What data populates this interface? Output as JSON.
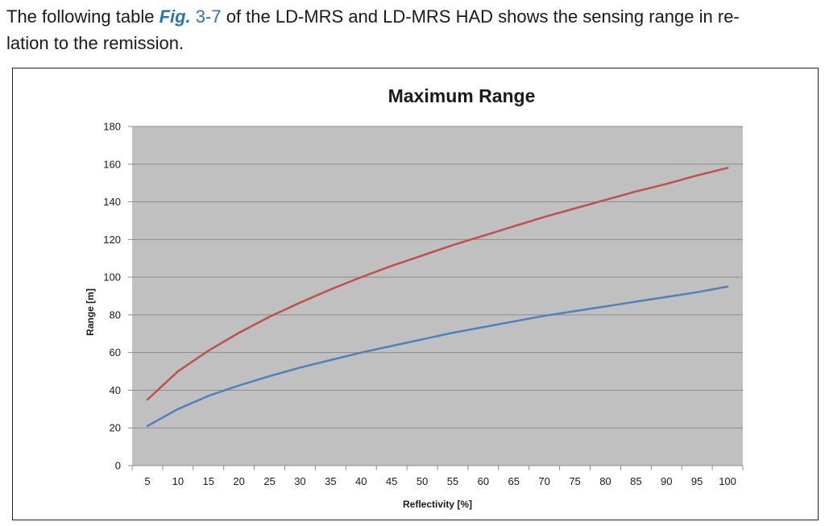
{
  "intro": {
    "text_before": "The following table ",
    "figure_ref_main": "Fig.",
    "figure_ref_num": " 3-7",
    "text_after_line1": " of the LD-MRS and LD-MRS HAD shows the sensing range in re-",
    "text_line2": "lation to the remission."
  },
  "chart_data": {
    "type": "line",
    "title": "Maximum Range",
    "xlabel": "Reflectivity [%]",
    "ylabel": "Range [m]",
    "x": [
      5,
      10,
      15,
      20,
      25,
      30,
      35,
      40,
      45,
      50,
      55,
      60,
      65,
      70,
      75,
      80,
      85,
      90,
      95,
      100
    ],
    "ylim": [
      0,
      180
    ],
    "yticks": [
      0,
      20,
      40,
      60,
      80,
      100,
      120,
      140,
      160,
      180
    ],
    "grid": true,
    "legend": "none",
    "plot_background": "#c0c0c0",
    "series": [
      {
        "color": "#c0504d",
        "values": [
          35,
          50,
          61,
          70.5,
          79,
          86.5,
          93.5,
          100,
          106,
          111.5,
          117,
          122,
          127,
          132,
          136.5,
          141,
          145.5,
          149.5,
          154,
          158
        ]
      },
      {
        "color": "#4f81bd",
        "values": [
          21,
          30,
          37,
          42.5,
          47.5,
          52,
          56,
          60,
          63.5,
          67,
          70.5,
          73.5,
          76.5,
          79.5,
          82,
          84.5,
          87,
          89.5,
          92,
          95
        ]
      }
    ]
  }
}
